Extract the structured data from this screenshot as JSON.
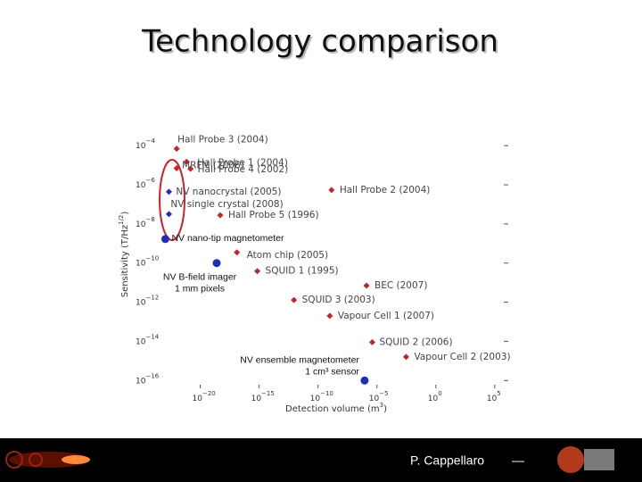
{
  "title": "Technology comparison",
  "footer": {
    "author": "P. Cappellaro",
    "mark": "—"
  },
  "chart_data": {
    "type": "scatter",
    "log_x": true,
    "log_y": true,
    "xlabel": [
      "Detection volume (m",
      "3",
      ")"
    ],
    "ylabel": [
      "Sensitivity (T/Hz",
      "1/2",
      ")"
    ],
    "xlim": [
      3e-24,
      1400000.0
    ],
    "ylim": [
      4e-17,
      0.0004
    ],
    "xticks": [
      {
        "value": 1e-20,
        "label": "10",
        "exponent": "−20"
      },
      {
        "value": 1e-15,
        "label": "10",
        "exponent": "−15"
      },
      {
        "value": 1e-10,
        "label": "10",
        "exponent": "−10"
      },
      {
        "value": 1e-05,
        "label": "10",
        "exponent": "−5"
      },
      {
        "value": 1,
        "label": "10",
        "exponent": "0"
      },
      {
        "value": 100000.0,
        "label": "10",
        "exponent": "5"
      }
    ],
    "yticks": [
      {
        "value": 0.0001,
        "label": "10",
        "exponent": "−4"
      },
      {
        "value": 1e-06,
        "label": "10",
        "exponent": "−6"
      },
      {
        "value": 1e-08,
        "label": "10",
        "exponent": "−8"
      },
      {
        "value": 1e-10,
        "label": "10",
        "exponent": "−10"
      },
      {
        "value": 1e-12,
        "label": "10",
        "exponent": "−12"
      },
      {
        "value": 1e-14,
        "label": "10",
        "exponent": "−14"
      },
      {
        "value": 1e-16,
        "label": "10",
        "exponent": "−16"
      }
    ],
    "series": [
      {
        "color": "#c0272d",
        "labels": [
          [
            "Hall Probe 3 (2004)"
          ],
          [
            "Hall Probe 1 (2004)"
          ],
          [
            "MRFM (2006)"
          ],
          [
            "Hall Probe 4 (2002)"
          ],
          [
            "Hall Probe 2 (2004)"
          ],
          [
            "Hall Probe 5 (1996)"
          ],
          [
            "Atom chip (2005)"
          ],
          [
            "SQUID 1 (1995)"
          ],
          [
            "BEC (2007)"
          ],
          [
            "SQUID 3 (2003)"
          ],
          [
            "Vapour Cell 1 (2007)"
          ],
          [
            "SQUID 2 (2006)"
          ],
          [
            "Vapour Cell 2 (2003)"
          ]
        ],
        "x": [
          1e-22,
          7e-22,
          1e-22,
          1.5e-21,
          1.4e-09,
          5e-19,
          1.3e-17,
          7e-16,
          1.3e-06,
          9e-13,
          1e-09,
          4e-06,
          0.003
        ],
        "y": [
          7e-05,
          1.5e-05,
          7e-06,
          6.6e-06,
          5.4e-07,
          2.8e-08,
          3.5e-10,
          3.9e-11,
          7e-12,
          1.3e-12,
          2e-13,
          9e-15,
          1.6e-15
        ]
      },
      {
        "color": "#1f2fb5",
        "labels": [
          [
            "NV nanocrystal (2005)"
          ],
          [
            "NV single crystal (2008)"
          ],
          [
            "NV nano-tip magnetometer"
          ],
          [
            "NV B-field imager",
            "1 mm pixels"
          ],
          [
            "NV ensemble magnetometer",
            "1 cm³ sensor"
          ]
        ],
        "x": [
          2.2e-23,
          2.2e-23,
          1.1e-23,
          2.5e-19,
          9e-07
        ],
        "y": [
          4.4e-07,
          3.2e-08,
          1.7e-09,
          1e-10,
          1e-16
        ]
      }
    ]
  }
}
